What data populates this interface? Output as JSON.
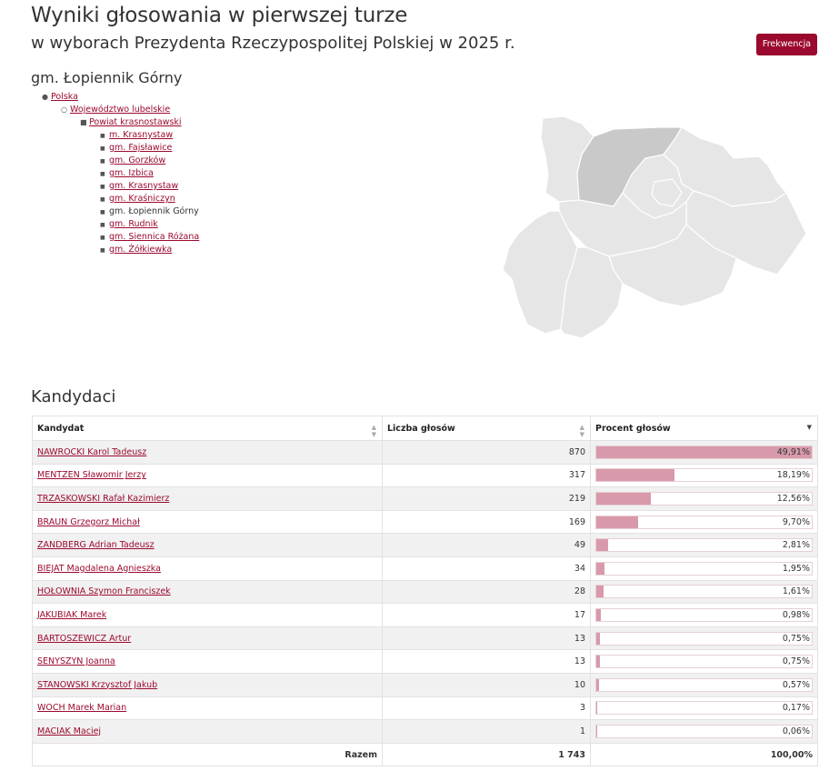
{
  "header": {
    "title_line1": "Wyniki głosowania w pierwszej turze",
    "title_line2": "w wyborach Prezydenta Rzeczypospolitej Polskiej w 2025 r.",
    "button_label": "Frekwencja",
    "accent_color": "#9b0a2e"
  },
  "gmina_title": "gm. Łopiennik Górny",
  "breadcrumb": {
    "level1": "Polska",
    "level2": "Województwo lubelskie",
    "level3": "Powiat krasnostawski",
    "items": [
      {
        "label": "m. Krasnystaw",
        "link": true
      },
      {
        "label": "gm. Fajsławice",
        "link": true
      },
      {
        "label": "gm. Gorzków",
        "link": true
      },
      {
        "label": "gm. Izbica",
        "link": true
      },
      {
        "label": "gm. Krasnystaw",
        "link": true
      },
      {
        "label": "gm. Kraśniczyn",
        "link": true
      },
      {
        "label": "gm. Łopiennik Górny",
        "link": false
      },
      {
        "label": "gm. Rudnik",
        "link": true
      },
      {
        "label": "gm. Siennica Różana",
        "link": true
      },
      {
        "label": "gm. Żółkiewka",
        "link": true
      }
    ]
  },
  "candidates_section_title": "Kandydaci",
  "table": {
    "col_candidate": "Kandydat",
    "col_votes": "Liczba głosów",
    "col_percent": "Procent głosów",
    "rows": [
      {
        "name": "NAWROCKI Karol Tadeusz",
        "votes": "870",
        "percent": "49,91%",
        "value": 49.91
      },
      {
        "name": "MENTZEN Sławomir Jerzy",
        "votes": "317",
        "percent": "18,19%",
        "value": 18.19
      },
      {
        "name": "TRZASKOWSKI Rafał Kazimierz",
        "votes": "219",
        "percent": "12,56%",
        "value": 12.56
      },
      {
        "name": "BRAUN Grzegorz Michał",
        "votes": "169",
        "percent": "9,70%",
        "value": 9.7
      },
      {
        "name": "ZANDBERG Adrian Tadeusz",
        "votes": "49",
        "percent": "2,81%",
        "value": 2.81
      },
      {
        "name": "BIEJAT Magdalena Agnieszka",
        "votes": "34",
        "percent": "1,95%",
        "value": 1.95
      },
      {
        "name": "HOŁOWNIA Szymon Franciszek",
        "votes": "28",
        "percent": "1,61%",
        "value": 1.61
      },
      {
        "name": "JAKUBIAK Marek",
        "votes": "17",
        "percent": "0,98%",
        "value": 0.98
      },
      {
        "name": "BARTOSZEWICZ Artur",
        "votes": "13",
        "percent": "0,75%",
        "value": 0.75
      },
      {
        "name": "SENYSZYN Joanna",
        "votes": "13",
        "percent": "0,75%",
        "value": 0.75
      },
      {
        "name": "STANOWSKI Krzysztof Jakub",
        "votes": "10",
        "percent": "0,57%",
        "value": 0.57
      },
      {
        "name": "WOCH Marek Marian",
        "votes": "3",
        "percent": "0,17%",
        "value": 0.17
      },
      {
        "name": "MACIAK Maciej",
        "votes": "1",
        "percent": "0,06%",
        "value": 0.06
      }
    ],
    "total_label": "Razem",
    "total_votes": "1 743",
    "total_percent": "100,00%"
  },
  "map": {
    "highlight_color": "#c9c9c9",
    "region_color": "#e6e6e6"
  }
}
